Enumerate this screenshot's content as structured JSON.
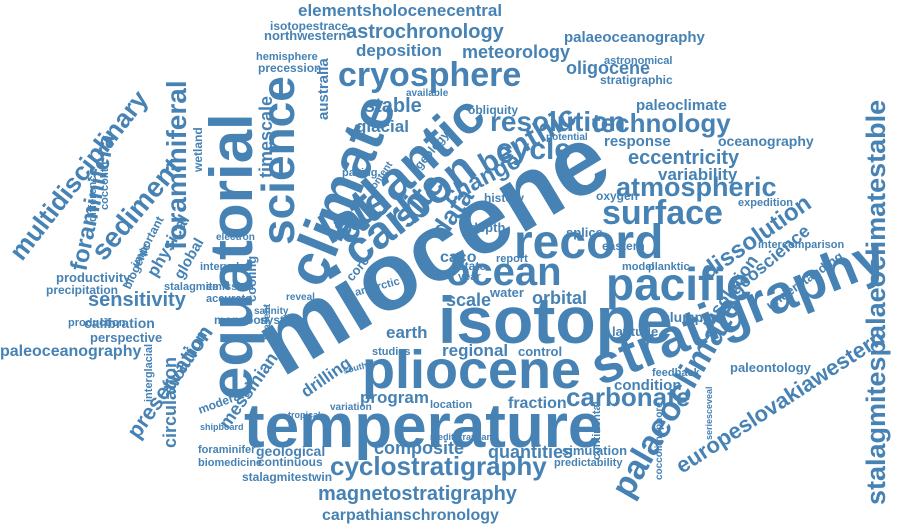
{
  "word_cloud": {
    "color": "#4682b4",
    "words": [
      {
        "text": "miocene",
        "size": "xxl",
        "orientation": "diagonal"
      },
      {
        "text": "isotope",
        "size": "xl",
        "orientation": "horizontal"
      },
      {
        "text": "temperature",
        "size": "xl",
        "orientation": "horizontal"
      },
      {
        "text": "pliocene",
        "size": "xl",
        "orientation": "horizontal"
      },
      {
        "text": "stratigraphy",
        "size": "xl",
        "orientation": "diagonal"
      },
      {
        "text": "equatorial",
        "size": "xl",
        "orientation": "vertical"
      },
      {
        "text": "climate",
        "size": "xl",
        "orientation": "diagonal"
      },
      {
        "text": "atlantic",
        "size": "l",
        "orientation": "diagonal"
      },
      {
        "text": "science",
        "size": "l",
        "orientation": "vertical"
      },
      {
        "text": "carbon",
        "size": "l",
        "orientation": "diagonal"
      },
      {
        "text": "cryosphere",
        "size": "l",
        "orientation": "horizontal"
      },
      {
        "text": "record",
        "size": "l",
        "orientation": "horizontal"
      },
      {
        "text": "pacific",
        "size": "l",
        "orientation": "horizontal"
      },
      {
        "text": "ocean",
        "size": "l",
        "orientation": "horizontal"
      },
      {
        "text": "late",
        "size": "l",
        "orientation": "diagonal"
      },
      {
        "text": "site",
        "size": "l",
        "orientation": "diagonal"
      },
      {
        "text": "surface",
        "size": "l",
        "orientation": "horizontal"
      },
      {
        "text": "atmospheric",
        "size": "m",
        "orientation": "horizontal"
      },
      {
        "text": "palaeoclimate",
        "size": "l",
        "orientation": "diagonal"
      },
      {
        "text": "stalagmitespalaeoclimatestable",
        "size": "l",
        "orientation": "vertical"
      },
      {
        "text": "multidisciplinary",
        "size": "m",
        "orientation": "diagonal"
      },
      {
        "text": "foraminiferal",
        "size": "m",
        "orientation": "vertical"
      },
      {
        "text": "foraminifera",
        "size": "m",
        "orientation": "vertical"
      },
      {
        "text": "sediment",
        "size": "m",
        "orientation": "diagonal"
      },
      {
        "text": "resolution",
        "size": "m",
        "orientation": "horizontal"
      },
      {
        "text": "technology",
        "size": "m",
        "orientation": "horizontal"
      },
      {
        "text": "benthic",
        "size": "m",
        "orientation": "diagonal"
      },
      {
        "text": "cycle",
        "size": "m",
        "orientation": "horizontal"
      },
      {
        "text": "data",
        "size": "m",
        "orientation": "diagonal"
      },
      {
        "text": "change",
        "size": "m",
        "orientation": "diagonal"
      },
      {
        "text": "carbonate",
        "size": "m",
        "orientation": "horizontal"
      },
      {
        "text": "cyclostratigraphy",
        "size": "m",
        "orientation": "horizontal"
      },
      {
        "text": "magnetostratigraphy",
        "size": "m",
        "orientation": "horizontal"
      },
      {
        "text": "carpathianschronology",
        "size": "s",
        "orientation": "horizontal"
      },
      {
        "text": "elementsholocenecentral",
        "size": "s",
        "orientation": "horizontal"
      },
      {
        "text": "astrochronology",
        "size": "s",
        "orientation": "horizontal"
      },
      {
        "text": "palaeoceanography",
        "size": "s",
        "orientation": "horizontal"
      },
      {
        "text": "paleoceanography",
        "size": "s",
        "orientation": "horizontal"
      },
      {
        "text": "europeslovakiawestern",
        "size": "m",
        "orientation": "diagonal"
      },
      {
        "text": "eccentricity",
        "size": "s",
        "orientation": "horizontal"
      },
      {
        "text": "variability",
        "size": "s",
        "orientation": "horizontal"
      },
      {
        "text": "dissolution",
        "size": "m",
        "orientation": "diagonal"
      },
      {
        "text": "geoscience",
        "size": "s",
        "orientation": "diagonal"
      },
      {
        "text": "insolation",
        "size": "s",
        "orientation": "diagonal"
      },
      {
        "text": "preservation",
        "size": "m",
        "orientation": "diagonal"
      },
      {
        "text": "circulation",
        "size": "s",
        "orientation": "vertical"
      },
      {
        "text": "sensitivity",
        "size": "s",
        "orientation": "horizontal"
      },
      {
        "text": "deposition",
        "size": "s",
        "orientation": "horizontal"
      },
      {
        "text": "meteorology",
        "size": "s",
        "orientation": "horizontal"
      },
      {
        "text": "oligocene",
        "size": "s",
        "orientation": "horizontal"
      },
      {
        "text": "stable",
        "size": "s",
        "orientation": "horizontal"
      },
      {
        "text": "glacial",
        "size": "s",
        "orientation": "horizontal"
      },
      {
        "text": "timescale",
        "size": "s",
        "orientation": "vertical"
      },
      {
        "text": "australia",
        "size": "s",
        "orientation": "vertical"
      },
      {
        "text": "regional",
        "size": "s",
        "orientation": "horizontal"
      },
      {
        "text": "control",
        "size": "xs",
        "orientation": "horizontal"
      },
      {
        "text": "orbital",
        "size": "s",
        "orientation": "horizontal"
      },
      {
        "text": "scale",
        "size": "s",
        "orientation": "horizontal"
      },
      {
        "text": "earth",
        "size": "s",
        "orientation": "horizontal"
      },
      {
        "text": "water",
        "size": "xs",
        "orientation": "horizontal"
      },
      {
        "text": "caco",
        "size": "s",
        "orientation": "horizontal"
      },
      {
        "text": "eastern",
        "size": "xs",
        "orientation": "horizontal"
      },
      {
        "text": "depth",
        "size": "xs",
        "orientation": "horizontal"
      },
      {
        "text": "splice",
        "size": "xs",
        "orientation": "horizontal"
      },
      {
        "text": "oxygen",
        "size": "xs",
        "orientation": "horizontal"
      },
      {
        "text": "response",
        "size": "xs",
        "orientation": "horizontal"
      },
      {
        "text": "oceanography",
        "size": "xs",
        "orientation": "horizontal"
      },
      {
        "text": "paleoclimate",
        "size": "xs",
        "orientation": "horizontal"
      },
      {
        "text": "clumped",
        "size": "xs",
        "orientation": "horizontal"
      },
      {
        "text": "latitude",
        "size": "xs",
        "orientation": "horizontal"
      },
      {
        "text": "understanding",
        "size": "xs",
        "orientation": "diagonal"
      },
      {
        "text": "paleontology",
        "size": "xs",
        "orientation": "horizontal"
      },
      {
        "text": "feedback",
        "size": "xs",
        "orientation": "horizontal"
      },
      {
        "text": "condition",
        "size": "xs",
        "orientation": "horizontal"
      },
      {
        "text": "program",
        "size": "s",
        "orientation": "horizontal"
      },
      {
        "text": "fraction",
        "size": "s",
        "orientation": "horizontal"
      },
      {
        "text": "composite",
        "size": "s",
        "orientation": "horizontal"
      },
      {
        "text": "quantities",
        "size": "s",
        "orientation": "horizontal"
      },
      {
        "text": "geological",
        "size": "xs",
        "orientation": "horizontal"
      },
      {
        "text": "continuous",
        "size": "xs",
        "orientation": "horizontal"
      },
      {
        "text": "biomedicine",
        "size": "xs",
        "orientation": "horizontal"
      },
      {
        "text": "foraminifer",
        "size": "xs",
        "orientation": "horizontal"
      },
      {
        "text": "stalagmitestwin",
        "size": "xs",
        "orientation": "horizontal"
      },
      {
        "text": "simulation",
        "size": "xs",
        "orientation": "horizontal"
      },
      {
        "text": "predictability",
        "size": "xs",
        "orientation": "horizontal"
      },
      {
        "text": "messinian",
        "size": "s",
        "orientation": "diagonal"
      },
      {
        "text": "drilling",
        "size": "s",
        "orientation": "diagonal"
      },
      {
        "text": "evolution",
        "size": "s",
        "orientation": "diagonal"
      },
      {
        "text": "productivity",
        "size": "xs",
        "orientation": "horizontal"
      },
      {
        "text": "precipitation",
        "size": "xs",
        "orientation": "horizontal"
      },
      {
        "text": "production",
        "size": "xs",
        "orientation": "horizontal"
      },
      {
        "text": "calibration",
        "size": "xs",
        "orientation": "horizontal"
      },
      {
        "text": "perspective",
        "size": "xs",
        "orientation": "horizontal"
      },
      {
        "text": "northwestern",
        "size": "xs",
        "orientation": "horizontal"
      },
      {
        "text": "isotopestrace",
        "size": "xs",
        "orientation": "horizontal"
      },
      {
        "text": "precession",
        "size": "xs",
        "orientation": "horizontal"
      },
      {
        "text": "hemisphere",
        "size": "xs",
        "orientation": "horizontal"
      },
      {
        "text": "stratigraphic",
        "size": "xs",
        "orientation": "horizontal"
      },
      {
        "text": "astronomical",
        "size": "xs",
        "orientation": "horizontal"
      },
      {
        "text": "obliquity",
        "size": "xs",
        "orientation": "horizontal"
      },
      {
        "text": "history",
        "size": "xs",
        "orientation": "horizontal"
      },
      {
        "text": "planktic",
        "size": "xs",
        "orientation": "horizontal"
      },
      {
        "text": "model",
        "size": "xs",
        "orientation": "horizontal"
      },
      {
        "text": "intercomparison",
        "size": "xs",
        "orientation": "horizontal"
      },
      {
        "text": "expedition",
        "size": "xs",
        "orientation": "horizontal"
      },
      {
        "text": "monsoon",
        "size": "xs",
        "orientation": "horizontal"
      },
      {
        "text": "system",
        "size": "xs",
        "orientation": "horizontal"
      },
      {
        "text": "interval",
        "size": "xs",
        "orientation": "horizontal"
      },
      {
        "text": "emission",
        "size": "xs",
        "orientation": "horizontal"
      },
      {
        "text": "accurate",
        "size": "xs",
        "orientation": "horizontal"
      },
      {
        "text": "moderate",
        "size": "xs",
        "orientation": "diagonal"
      },
      {
        "text": "interglacial",
        "size": "xs",
        "orientation": "vertical"
      },
      {
        "text": "physical",
        "size": "s",
        "orientation": "diagonal"
      },
      {
        "text": "global",
        "size": "s",
        "orientation": "diagonal"
      },
      {
        "text": "biogenic",
        "size": "xs",
        "orientation": "diagonal"
      },
      {
        "text": "important",
        "size": "xs",
        "orientation": "diagonal"
      },
      {
        "text": "cooling",
        "size": "xs",
        "orientation": "vertical"
      },
      {
        "text": "wetland",
        "size": "xs",
        "orientation": "vertical"
      },
      {
        "text": "coccolith",
        "size": "xs",
        "orientation": "vertical"
      },
      {
        "text": "difference",
        "size": "xs",
        "orientation": "vertical"
      },
      {
        "text": "stalagmite",
        "size": "xs",
        "orientation": "horizontal"
      },
      {
        "text": "coccolithophore",
        "size": "xs",
        "orientation": "vertical"
      },
      {
        "text": "seriesceveal",
        "size": "xs",
        "orientation": "vertical"
      },
      {
        "text": "mediterranean",
        "size": "xs",
        "orientation": "horizontal"
      },
      {
        "text": "location",
        "size": "xs",
        "orientation": "horizontal"
      },
      {
        "text": "studies",
        "size": "xs",
        "orientation": "horizontal"
      },
      {
        "text": "state",
        "size": "xs",
        "orientation": "horizontal"
      },
      {
        "text": "year",
        "size": "xs",
        "orientation": "horizontal"
      },
      {
        "text": "report",
        "size": "xs",
        "orientation": "horizontal"
      },
      {
        "text": "present",
        "size": "xs",
        "orientation": "vertical"
      },
      {
        "text": "salinity",
        "size": "xs",
        "orientation": "horizontal"
      },
      {
        "text": "reveal",
        "size": "xs",
        "orientation": "horizontal"
      },
      {
        "text": "antarctic",
        "size": "xs",
        "orientation": "diagonal"
      },
      {
        "text": "core",
        "size": "xs",
        "orientation": "diagonal"
      },
      {
        "text": "pacing",
        "size": "xs",
        "orientation": "horizontal"
      },
      {
        "text": "content",
        "size": "xs",
        "orientation": "diagonal"
      },
      {
        "text": "available",
        "size": "xs",
        "orientation": "horizontal"
      },
      {
        "text": "potential",
        "size": "xs",
        "orientation": "horizontal"
      },
      {
        "text": "geology",
        "size": "xs",
        "orientation": "diagonal"
      },
      {
        "text": "continental",
        "size": "xs",
        "orientation": "vertical"
      },
      {
        "text": "southern",
        "size": "xs",
        "orientation": "diagonal"
      },
      {
        "text": "variation",
        "size": "xs",
        "orientation": "horizontal"
      },
      {
        "text": "tropical",
        "size": "xs",
        "orientation": "horizontal"
      },
      {
        "text": "electron",
        "size": "xs",
        "orientation": "horizontal"
      },
      {
        "text": "shipboard",
        "size": "xs",
        "orientation": "horizontal"
      }
    ]
  }
}
